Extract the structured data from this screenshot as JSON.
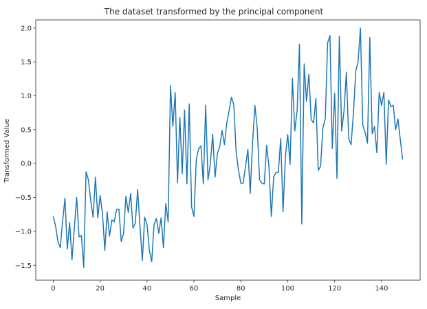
{
  "chart_data": {
    "type": "line",
    "title": "The dataset transformed by the principal component",
    "xlabel": "Sample",
    "ylabel": "Transformed Value",
    "xlim": [
      -7.45,
      156.45
    ],
    "ylim": [
      -1.72,
      2.12
    ],
    "xticks": [
      0,
      20,
      40,
      60,
      80,
      100,
      120,
      140
    ],
    "yticks": [
      -1.5,
      -1.0,
      -0.5,
      0.0,
      0.5,
      1.0,
      1.5,
      2.0
    ],
    "xtick_labels": [
      "0",
      "20",
      "40",
      "60",
      "80",
      "100",
      "120",
      "140"
    ],
    "ytick_labels": [
      "−1.5",
      "−1.0",
      "−0.5",
      "0.0",
      "0.5",
      "1.0",
      "1.5",
      "2.0"
    ],
    "grid": false,
    "legend": "none",
    "series": [
      {
        "color": "#1f77b4",
        "x": [
          0,
          1,
          2,
          3,
          4,
          5,
          6,
          7,
          8,
          9,
          10,
          11,
          12,
          13,
          14,
          15,
          16,
          17,
          18,
          19,
          20,
          21,
          22,
          23,
          24,
          25,
          26,
          27,
          28,
          29,
          30,
          31,
          32,
          33,
          34,
          35,
          36,
          37,
          38,
          39,
          40,
          41,
          42,
          43,
          44,
          45,
          46,
          47,
          48,
          49,
          50,
          51,
          52,
          53,
          54,
          55,
          56,
          57,
          58,
          59,
          60,
          61,
          62,
          63,
          64,
          65,
          66,
          67,
          68,
          69,
          70,
          71,
          72,
          73,
          74,
          75,
          76,
          77,
          78,
          79,
          80,
          81,
          82,
          83,
          84,
          85,
          86,
          87,
          88,
          89,
          90,
          91,
          92,
          93,
          94,
          95,
          96,
          97,
          98,
          99,
          100,
          101,
          102,
          103,
          104,
          105,
          106,
          107,
          108,
          109,
          110,
          111,
          112,
          113,
          114,
          115,
          116,
          117,
          118,
          119,
          120,
          121,
          122,
          123,
          124,
          125,
          126,
          127,
          128,
          129,
          130,
          131,
          132,
          133,
          134,
          135,
          136,
          137,
          138,
          139,
          140,
          141,
          142,
          143,
          144,
          145,
          146,
          147,
          148,
          149
        ],
        "values": [
          -0.78,
          -0.92,
          -1.15,
          -1.24,
          -0.85,
          -0.51,
          -1.26,
          -0.87,
          -1.42,
          -0.95,
          -0.5,
          -1.08,
          -1.06,
          -1.53,
          -0.12,
          -0.24,
          -0.55,
          -0.79,
          -0.2,
          -0.8,
          -0.47,
          -0.74,
          -1.28,
          -0.71,
          -1.07,
          -0.83,
          -0.86,
          -0.68,
          -0.67,
          -1.15,
          -1.03,
          -0.48,
          -0.72,
          -0.44,
          -0.95,
          -0.88,
          -0.38,
          -0.93,
          -1.43,
          -0.79,
          -0.9,
          -1.28,
          -1.45,
          -0.9,
          -0.81,
          -1.03,
          -0.8,
          -1.24,
          -0.59,
          -0.86,
          1.15,
          0.55,
          1.05,
          -0.28,
          0.68,
          -0.15,
          0.79,
          -0.3,
          0.88,
          -0.64,
          -0.78,
          0.06,
          0.22,
          0.26,
          -0.3,
          0.86,
          -0.24,
          0.0,
          0.43,
          -0.2,
          0.15,
          0.25,
          0.49,
          0.28,
          0.6,
          0.78,
          0.98,
          0.87,
          0.17,
          -0.1,
          -0.29,
          -0.29,
          -0.04,
          0.21,
          -0.44,
          0.31,
          0.86,
          0.52,
          -0.24,
          -0.29,
          -0.3,
          0.27,
          -0.05,
          -0.78,
          -0.2,
          -0.13,
          -0.13,
          0.37,
          -0.71,
          0.1,
          0.43,
          -0.01,
          1.26,
          0.48,
          0.78,
          1.76,
          -0.89,
          1.47,
          0.92,
          1.32,
          0.65,
          0.6,
          0.96,
          -0.1,
          -0.04,
          0.53,
          0.66,
          1.78,
          1.89,
          0.22,
          1.04,
          -0.22,
          1.88,
          0.48,
          0.78,
          1.35,
          0.37,
          0.28,
          0.74,
          1.36,
          1.51,
          2.0,
          0.57,
          0.46,
          0.3,
          1.86,
          0.44,
          0.55,
          0.16,
          1.05,
          0.86,
          1.05,
          -0.01,
          0.94,
          0.84,
          0.86,
          0.5,
          0.66,
          0.35,
          0.06
        ]
      }
    ]
  }
}
